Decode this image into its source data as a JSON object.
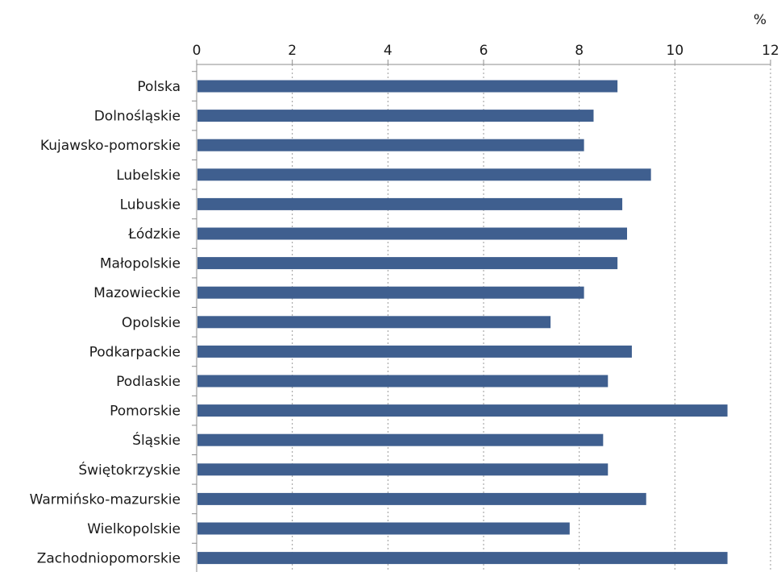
{
  "chart_data": {
    "type": "bar",
    "orientation": "horizontal",
    "unit": "%",
    "categories": [
      "Polska",
      "Dolnośląskie",
      "Kujawsko-pomorskie",
      "Lubelskie",
      "Lubuskie",
      "Łódzkie",
      "Małopolskie",
      "Mazowieckie",
      "Opolskie",
      "Podkarpackie",
      "Podlaskie",
      "Pomorskie",
      "Śląskie",
      "Świętokrzyskie",
      "Warmińsko-mazurskie",
      "Wielkopolskie",
      "Zachodniopomorskie"
    ],
    "values": [
      8.8,
      8.3,
      8.1,
      9.5,
      8.9,
      9.0,
      8.8,
      8.1,
      7.4,
      9.1,
      8.6,
      11.1,
      8.5,
      8.6,
      9.4,
      7.8,
      11.1
    ],
    "xlim": [
      0,
      12
    ],
    "xticks": [
      0,
      2,
      4,
      6,
      8,
      10,
      12
    ],
    "grid": "vertical dashed",
    "axis_position": "top",
    "colors": {
      "bar": "#3f5f8f",
      "grid": "#9a9a9a",
      "axis": "#8c8c8c",
      "text": "#1a1a1a"
    }
  }
}
